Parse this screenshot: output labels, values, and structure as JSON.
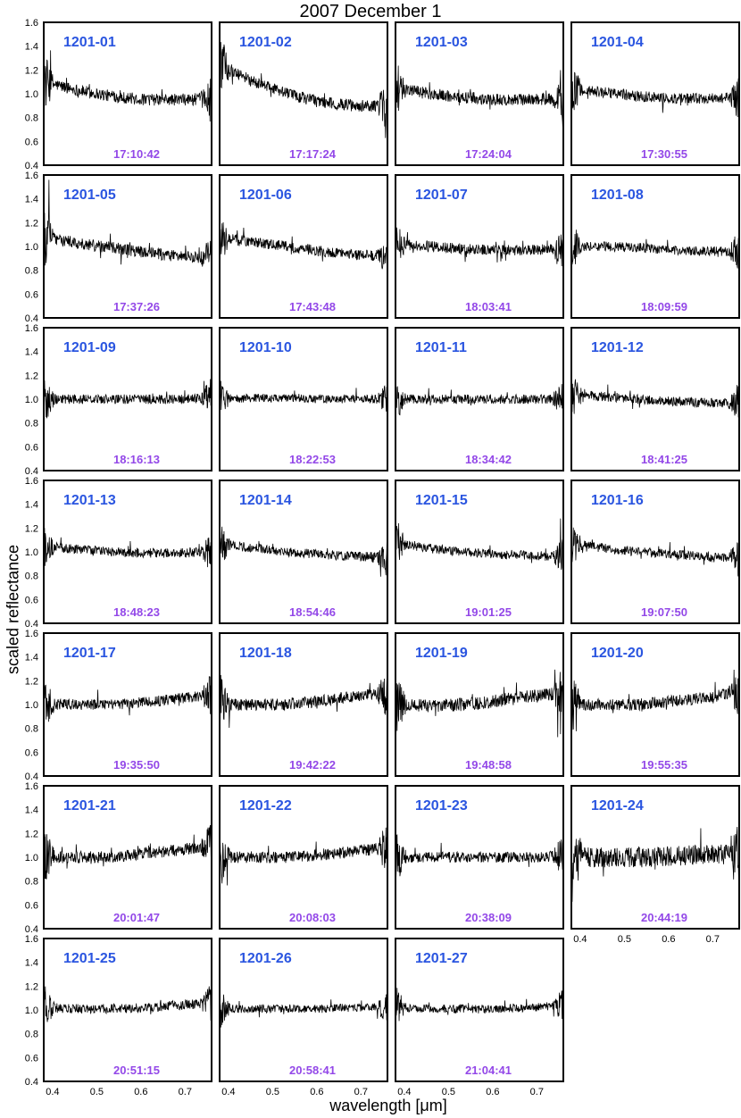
{
  "figure": {
    "title": "2007 December 1",
    "ylabel": "scaled reflectance",
    "xlabel": "wavelength [μm]"
  },
  "colors": {
    "label": "#2a55e0",
    "time": "#9348e8",
    "line": "#000000"
  },
  "chart_data": {
    "type": "line",
    "title": "2007 December 1",
    "xlabel": "wavelength [μm]",
    "ylabel": "scaled reflectance",
    "xlim": [
      0.38,
      0.76
    ],
    "ylim": [
      0.4,
      1.6
    ],
    "xticks": [
      "0.4",
      "0.5",
      "0.6",
      "0.7"
    ],
    "yticks": [
      "0.4",
      "0.6",
      "0.8",
      "1.0",
      "1.2",
      "1.4",
      "1.6"
    ],
    "grid": false,
    "panels": [
      {
        "label": "1201-01",
        "time": "17:10:42",
        "trend": [
          1.1,
          1.03,
          0.98,
          0.95,
          0.95,
          0.96
        ],
        "noise": 0.05
      },
      {
        "label": "1201-02",
        "time": "17:17:24",
        "trend": [
          1.25,
          1.1,
          1.0,
          0.93,
          0.9,
          0.9
        ],
        "noise": 0.05
      },
      {
        "label": "1201-03",
        "time": "17:24:04",
        "trend": [
          1.05,
          1.0,
          0.97,
          0.95,
          0.95,
          0.96
        ],
        "noise": 0.05
      },
      {
        "label": "1201-04",
        "time": "17:30:55",
        "trend": [
          1.04,
          1.01,
          0.98,
          0.96,
          0.96,
          0.97
        ],
        "noise": 0.045
      },
      {
        "label": "1201-05",
        "time": "17:37:26",
        "trend": [
          1.08,
          1.03,
          0.99,
          0.95,
          0.92,
          0.9
        ],
        "noise": 0.05
      },
      {
        "label": "1201-06",
        "time": "17:43:48",
        "trend": [
          1.08,
          1.04,
          1.0,
          0.96,
          0.93,
          0.92
        ],
        "noise": 0.045
      },
      {
        "label": "1201-07",
        "time": "18:03:41",
        "trend": [
          1.03,
          1.0,
          0.98,
          0.97,
          0.97,
          0.98
        ],
        "noise": 0.045
      },
      {
        "label": "1201-08",
        "time": "18:09:59",
        "trend": [
          1.0,
          1.0,
          0.99,
          0.97,
          0.96,
          0.96
        ],
        "noise": 0.04
      },
      {
        "label": "1201-09",
        "time": "18:16:13",
        "trend": [
          1.0,
          1.0,
          1.0,
          1.0,
          1.0,
          1.01
        ],
        "noise": 0.04
      },
      {
        "label": "1201-10",
        "time": "18:22:53",
        "trend": [
          1.0,
          1.01,
          1.01,
          1.0,
          1.0,
          1.0
        ],
        "noise": 0.035
      },
      {
        "label": "1201-11",
        "time": "18:34:42",
        "trend": [
          1.0,
          1.0,
          1.0,
          1.0,
          1.0,
          1.0
        ],
        "noise": 0.04
      },
      {
        "label": "1201-12",
        "time": "18:41:25",
        "trend": [
          1.05,
          1.02,
          1.0,
          0.98,
          0.97,
          0.97
        ],
        "noise": 0.04
      },
      {
        "label": "1201-13",
        "time": "18:48:23",
        "trend": [
          1.05,
          1.02,
          1.0,
          0.99,
          0.99,
          1.0
        ],
        "noise": 0.04
      },
      {
        "label": "1201-14",
        "time": "18:54:46",
        "trend": [
          1.07,
          1.03,
          1.0,
          0.98,
          0.96,
          0.96
        ],
        "noise": 0.04
      },
      {
        "label": "1201-15",
        "time": "19:01:25",
        "trend": [
          1.08,
          1.03,
          1.0,
          0.98,
          0.97,
          0.96
        ],
        "noise": 0.04
      },
      {
        "label": "1201-16",
        "time": "19:07:50",
        "trend": [
          1.08,
          1.03,
          1.0,
          0.98,
          0.96,
          0.94
        ],
        "noise": 0.04
      },
      {
        "label": "1201-17",
        "time": "19:35:50",
        "trend": [
          1.0,
          1.0,
          1.0,
          1.02,
          1.05,
          1.08
        ],
        "noise": 0.045
      },
      {
        "label": "1201-18",
        "time": "19:42:22",
        "trend": [
          1.0,
          1.0,
          1.0,
          1.03,
          1.07,
          1.1
        ],
        "noise": 0.05
      },
      {
        "label": "1201-19",
        "time": "19:48:58",
        "trend": [
          1.0,
          0.99,
          1.0,
          1.03,
          1.07,
          1.1
        ],
        "noise": 0.055
      },
      {
        "label": "1201-20",
        "time": "19:55:35",
        "trend": [
          1.0,
          1.0,
          1.0,
          1.03,
          1.06,
          1.1
        ],
        "noise": 0.05
      },
      {
        "label": "1201-21",
        "time": "20:01:47",
        "trend": [
          1.0,
          1.0,
          1.0,
          1.03,
          1.06,
          1.1
        ],
        "noise": 0.05
      },
      {
        "label": "1201-22",
        "time": "20:08:03",
        "trend": [
          1.0,
          1.0,
          1.0,
          1.02,
          1.05,
          1.08
        ],
        "noise": 0.05
      },
      {
        "label": "1201-23",
        "time": "20:38:09",
        "trend": [
          1.0,
          1.0,
          1.0,
          1.0,
          1.0,
          1.01
        ],
        "noise": 0.045
      },
      {
        "label": "1201-24",
        "time": "20:44:19",
        "trend": [
          1.0,
          1.0,
          1.0,
          1.01,
          1.02,
          1.03
        ],
        "noise": 0.085
      },
      {
        "label": "1201-25",
        "time": "20:51:15",
        "trend": [
          1.02,
          1.01,
          1.01,
          1.02,
          1.04,
          1.06
        ],
        "noise": 0.04
      },
      {
        "label": "1201-26",
        "time": "20:58:41",
        "trend": [
          1.01,
          1.01,
          1.01,
          1.01,
          1.02,
          1.02
        ],
        "noise": 0.035
      },
      {
        "label": "1201-27",
        "time": "21:04:41",
        "trend": [
          1.02,
          1.01,
          1.01,
          1.01,
          1.02,
          1.04
        ],
        "noise": 0.035
      }
    ]
  }
}
